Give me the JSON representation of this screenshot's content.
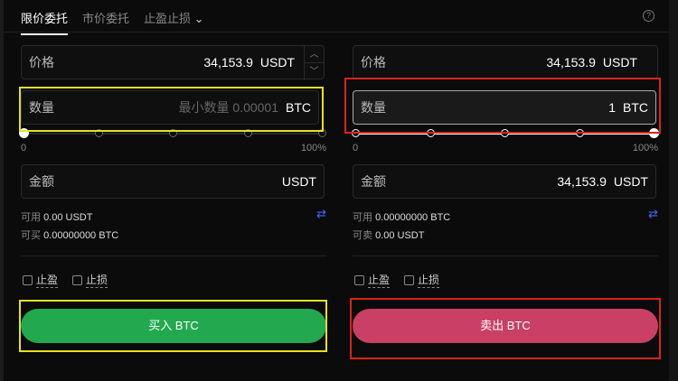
{
  "tabs": [
    {
      "label": "限价委托"
    },
    {
      "label": "市价委托"
    },
    {
      "label": "止盈止损"
    }
  ],
  "help_icon": "question-circle-icon",
  "buy": {
    "price_label": "价格",
    "price_value": "34,153.9",
    "price_unit": "USDT",
    "qty_label": "数量",
    "qty_placeholder": "最小数量 0.00001",
    "qty_unit": "BTC",
    "slider_percent": 0,
    "slider_min": "0",
    "slider_max": "100%",
    "amount_label": "金额",
    "amount_value": "",
    "amount_unit": "USDT",
    "avail_label": "可用",
    "avail_value": "0.00 USDT",
    "can_label": "可买",
    "can_value": "0.00000000 BTC",
    "tp_label": "止盈",
    "sl_label": "止损",
    "button": "买入 BTC",
    "color": "#22a94f"
  },
  "sell": {
    "price_label": "价格",
    "price_value": "34,153.9",
    "price_unit": "USDT",
    "qty_label": "数量",
    "qty_value": "1",
    "qty_unit": "BTC",
    "slider_percent": 100,
    "slider_min": "0",
    "slider_max": "100%",
    "amount_label": "金额",
    "amount_value": "34,153.9",
    "amount_unit": "USDT",
    "avail_label": "可用",
    "avail_value": "0.00000000 BTC",
    "can_label": "可卖",
    "can_value": "0.00 USDT",
    "tp_label": "止盈",
    "sl_label": "止损",
    "button": "卖出 BTC",
    "color": "#c94064"
  },
  "highlight_colors": {
    "buy": "#e8e020",
    "sell": "#d9241c"
  }
}
